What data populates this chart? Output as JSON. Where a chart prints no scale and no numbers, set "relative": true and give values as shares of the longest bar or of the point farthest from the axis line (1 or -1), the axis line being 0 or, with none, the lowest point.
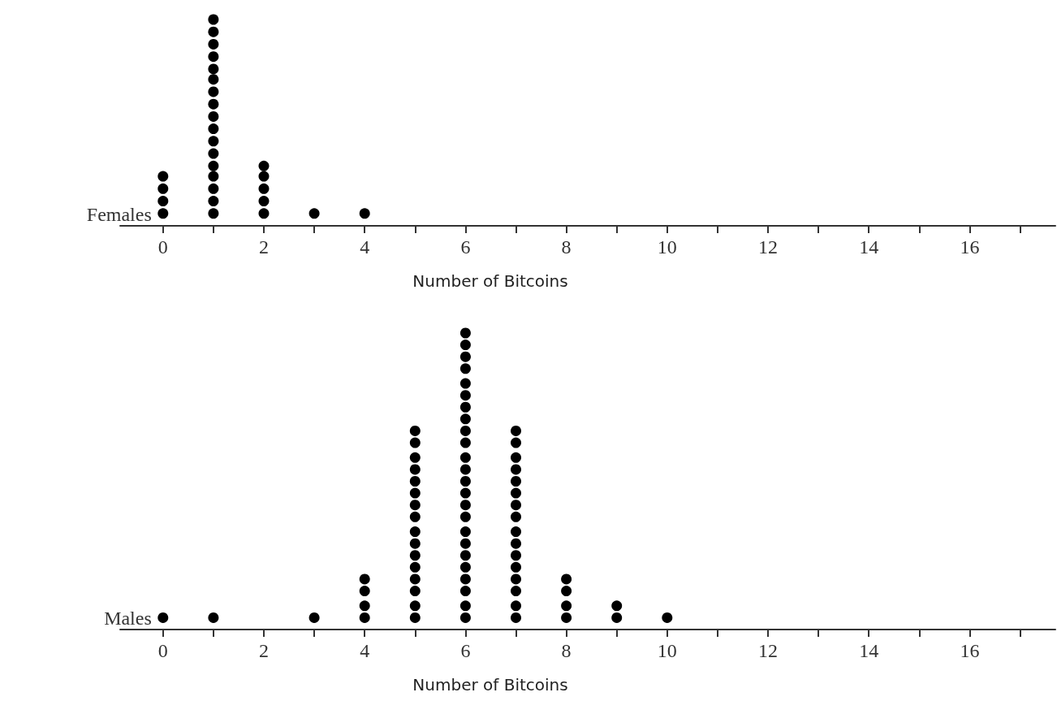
{
  "chart_data": [
    {
      "type": "scatter",
      "ylabel": "Females",
      "xlabel": "Number of Bitcoins",
      "marker": "circle",
      "tick_labels": "x",
      "relative": true,
      "xlim": [
        -0.85,
        17.7
      ],
      "xticks": [
        0,
        {
          "value": 1,
          "label": null
        },
        2,
        {
          "value": 3,
          "label": null
        },
        4,
        {
          "value": 5,
          "label": null
        },
        6,
        {
          "value": 7,
          "label": null
        },
        8,
        {
          "value": 9,
          "label": null
        },
        10,
        {
          "value": 11,
          "label": null
        },
        12,
        {
          "value": 13,
          "label": null
        },
        14,
        {
          "value": 15,
          "label": null
        },
        16,
        {
          "value": 17,
          "label": null
        }
      ],
      "series": [
        {
          "color": "#000000",
          "x": [
            0,
            0,
            0,
            0,
            1,
            1,
            1,
            1,
            1,
            1,
            1,
            1,
            1,
            1,
            1,
            1,
            1,
            1,
            1,
            1,
            1,
            2,
            2,
            2,
            2,
            2,
            3,
            4
          ],
          "values": [
            0.06,
            0.12,
            0.18,
            0.24,
            0.06,
            0.12,
            0.18,
            0.24,
            0.29,
            0.35,
            0.41,
            0.47,
            0.53,
            0.59,
            0.65,
            0.71,
            0.76,
            0.82,
            0.88,
            0.94,
            1,
            0.06,
            0.12,
            0.18,
            0.24,
            0.29,
            0.06,
            0.06
          ]
        }
      ]
    },
    {
      "type": "scatter",
      "ylabel": "Males",
      "xlabel": "Number of Bitcoins",
      "marker": "circle",
      "tick_labels": "x",
      "relative": true,
      "xlim": [
        -0.85,
        17.7
      ],
      "xticks": [
        0,
        {
          "value": 1,
          "label": null
        },
        2,
        {
          "value": 3,
          "label": null
        },
        4,
        {
          "value": 5,
          "label": null
        },
        6,
        {
          "value": 7,
          "label": null
        },
        8,
        {
          "value": 9,
          "label": null
        },
        10,
        {
          "value": 11,
          "label": null
        },
        12,
        {
          "value": 13,
          "label": null
        },
        14,
        {
          "value": 15,
          "label": null
        },
        16,
        {
          "value": 17,
          "label": null
        }
      ],
      "series": [
        {
          "color": "#000000",
          "x": [
            0,
            1,
            3,
            4,
            4,
            4,
            4,
            5,
            5,
            5,
            5,
            5,
            5,
            5,
            5,
            5,
            5,
            5,
            5,
            5,
            5,
            5,
            5,
            6,
            6,
            6,
            6,
            6,
            6,
            6,
            6,
            6,
            6,
            6,
            6,
            6,
            6,
            6,
            6,
            6,
            6,
            6,
            6,
            6,
            6,
            6,
            6,
            7,
            7,
            7,
            7,
            7,
            7,
            7,
            7,
            7,
            7,
            7,
            7,
            7,
            7,
            7,
            7,
            8,
            8,
            8,
            8,
            9,
            9,
            10
          ],
          "values": [
            0.04,
            0.04,
            0.04,
            0.04,
            0.08,
            0.13,
            0.17,
            0.04,
            0.08,
            0.13,
            0.17,
            0.21,
            0.25,
            0.29,
            0.33,
            0.38,
            0.42,
            0.46,
            0.5,
            0.54,
            0.58,
            0.63,
            0.67,
            0.04,
            0.08,
            0.13,
            0.17,
            0.21,
            0.25,
            0.29,
            0.33,
            0.38,
            0.42,
            0.46,
            0.5,
            0.54,
            0.58,
            0.63,
            0.67,
            0.71,
            0.75,
            0.79,
            0.83,
            0.88,
            0.92,
            0.96,
            1,
            0.04,
            0.08,
            0.13,
            0.17,
            0.21,
            0.25,
            0.29,
            0.33,
            0.38,
            0.42,
            0.46,
            0.5,
            0.54,
            0.58,
            0.63,
            0.67,
            0.04,
            0.08,
            0.13,
            0.17,
            0.04,
            0.08,
            0.04
          ]
        }
      ]
    }
  ]
}
